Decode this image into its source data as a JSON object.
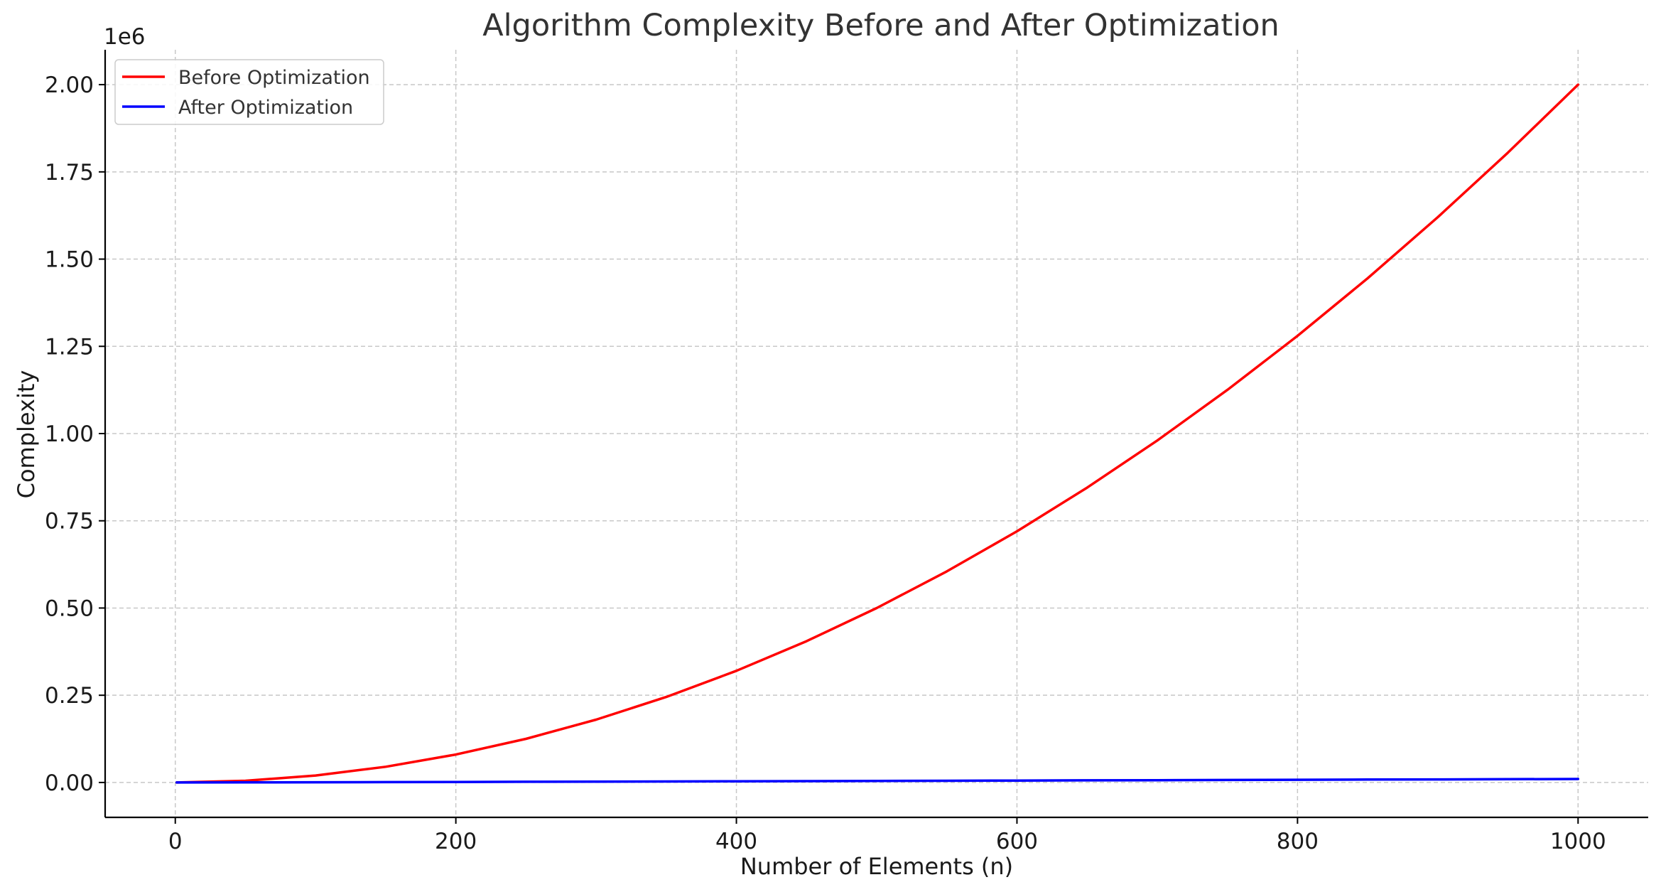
{
  "chart_data": {
    "type": "line",
    "title": "Algorithm Complexity Before and After Optimization",
    "xlabel": "Number of Elements (n)",
    "ylabel": "Complexity",
    "y_offset_text": "1e6",
    "xlim": [
      -50,
      1050
    ],
    "ylim": [
      -100000,
      2100000
    ],
    "x_ticks": [
      0,
      200,
      400,
      600,
      800,
      1000
    ],
    "x_tick_labels": [
      "0",
      "200",
      "400",
      "600",
      "800",
      "1000"
    ],
    "y_ticks": [
      0,
      250000,
      500000,
      750000,
      1000000,
      1250000,
      1500000,
      1750000,
      2000000
    ],
    "y_tick_labels": [
      "0.00",
      "0.25",
      "0.50",
      "0.75",
      "1.00",
      "1.25",
      "1.50",
      "1.75",
      "2.00"
    ],
    "grid": true,
    "legend_position": "top-left",
    "x": [
      1,
      50,
      100,
      150,
      200,
      250,
      300,
      350,
      400,
      450,
      500,
      550,
      600,
      650,
      700,
      750,
      800,
      850,
      900,
      950,
      1000
    ],
    "series": [
      {
        "name": "Before Optimization",
        "color": "#ff0000",
        "values": [
          0,
          5000,
          20000,
          45000,
          80000,
          125000,
          180000,
          245000,
          320000,
          405000,
          500000,
          605000,
          720000,
          845000,
          980000,
          1125000,
          1280000,
          1445000,
          1620000,
          1805000,
          2000000
        ]
      },
      {
        "name": "After Optimization",
        "color": "#0000ff",
        "values": [
          0,
          282,
          664,
          1084,
          1529,
          1991,
          2469,
          2958,
          3458,
          3966,
          4483,
          5006,
          5537,
          6073,
          6615,
          7162,
          7714,
          8270,
          8831,
          9396,
          9966
        ]
      }
    ]
  }
}
